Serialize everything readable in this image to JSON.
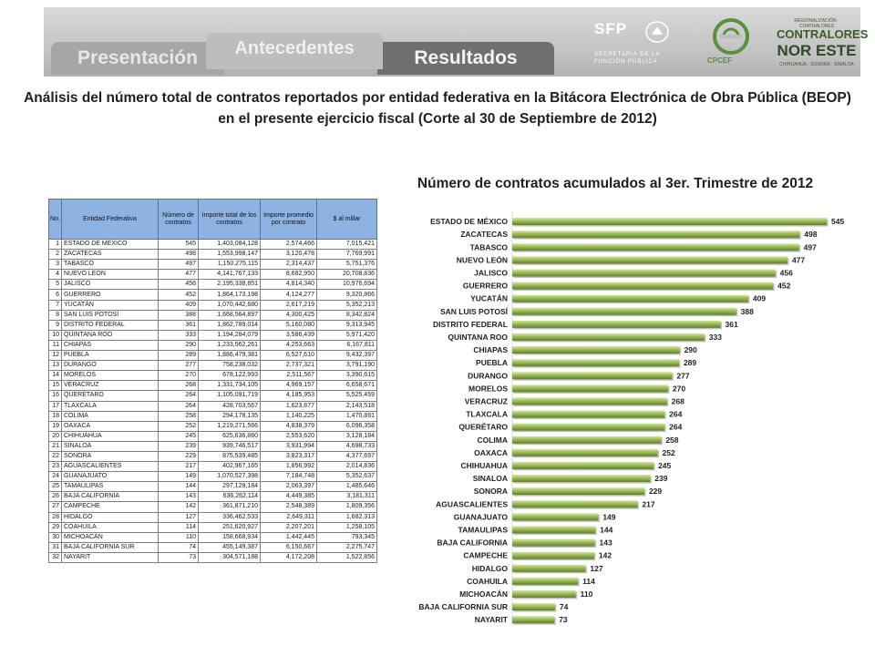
{
  "header": {
    "tabs": [
      {
        "label": "Presentación"
      },
      {
        "label": "Antecedentes"
      },
      {
        "label": "Resultados"
      }
    ],
    "logos": {
      "sfp": {
        "name": "SFP",
        "subtitle_line1": "SECRETARÍA DE LA",
        "subtitle_line2": "FUNCIÓN PÚBLICA"
      },
      "cpcef": {
        "name": "CPCEF"
      },
      "contralores": {
        "small": "REGIONALIZACIÓN · CONTRALORES",
        "line1": "CONTRALORES",
        "line2": "NOR ESTE",
        "footer": "CHIHUAHUA · SONORA · SINALOA"
      }
    }
  },
  "main_title": "Análisis del número total de contratos reportados por entidad federativa en la Bitácora Electrónica de Obra Pública (BEOP) en el presente ejercicio fiscal (Corte al 30 de Septiembre de 2012)",
  "chart_title": "Número de contratos acumulados al 3er. Trimestre de 2012",
  "table": {
    "headers": [
      "No.",
      "Entidad Federativa",
      "Número de contratos",
      "Importe total de los contratos",
      "Importe promedio por contrato",
      "$ al millar"
    ],
    "rows": [
      [
        "1",
        "ESTADO DE MÉXICO",
        "545",
        "1,403,084,128",
        "2,574,466",
        "7,015,421"
      ],
      [
        "2",
        "ZACATECAS",
        "498",
        "1,553,998,147",
        "3,120,478",
        "7,769,991"
      ],
      [
        "3",
        "TABASCO",
        "497",
        "1,150,275,115",
        "2,314,437",
        "5,751,376"
      ],
      [
        "4",
        "NUEVO LEÓN",
        "477",
        "4,141,767,133",
        "8,682,950",
        "20,708,836"
      ],
      [
        "5",
        "JALISCO",
        "456",
        "2,195,338,851",
        "4,814,340",
        "10,976,694"
      ],
      [
        "6",
        "GUERRERO",
        "452",
        "1,864,173,198",
        "4,124,277",
        "9,320,866"
      ],
      [
        "7",
        "YUCATÁN",
        "409",
        "1,070,442,680",
        "2,617,219",
        "5,352,213"
      ],
      [
        "8",
        "SAN LUIS POTOSÍ",
        "388",
        "1,668,564,897",
        "4,300,425",
        "8,342,824"
      ],
      [
        "9",
        "DISTRITO FEDERAL",
        "361",
        "1,862,789,014",
        "5,160,080",
        "9,313,945"
      ],
      [
        "10",
        "QUINTANA ROO",
        "333",
        "1,194,284,079",
        "3,586,439",
        "5,971,420"
      ],
      [
        "11",
        "CHIAPAS",
        "290",
        "1,233,562,261",
        "4,253,663",
        "6,167,811"
      ],
      [
        "12",
        "PUEBLA",
        "289",
        "1,886,479,381",
        "6,527,610",
        "9,432,397"
      ],
      [
        "13",
        "DURANGO",
        "277",
        "758,238,032",
        "2,737,321",
        "3,791,190"
      ],
      [
        "14",
        "MORELOS",
        "270",
        "678,122,993",
        "2,511,567",
        "3,390,615"
      ],
      [
        "15",
        "VERACRUZ",
        "268",
        "1,331,734,105",
        "4,969,157",
        "6,658,671"
      ],
      [
        "16",
        "QUERÉTARO",
        "264",
        "1,105,091,719",
        "4,185,953",
        "5,525,459"
      ],
      [
        "17",
        "TLAXCALA",
        "264",
        "428,703,567",
        "1,623,877",
        "2,143,518"
      ],
      [
        "18",
        "COLIMA",
        "258",
        "294,178,135",
        "1,140,225",
        "1,470,891"
      ],
      [
        "19",
        "OAXACA",
        "252",
        "1,219,271,566",
        "4,838,379",
        "6,096,358"
      ],
      [
        "20",
        "CHIHUAHUA",
        "245",
        "625,636,860",
        "2,553,620",
        "3,128,184"
      ],
      [
        "21",
        "SINALOA",
        "239",
        "939,746,517",
        "3,931,994",
        "4,698,733"
      ],
      [
        "22",
        "SONORA",
        "229",
        "875,539,485",
        "3,823,317",
        "4,377,697"
      ],
      [
        "23",
        "AGUASCALIENTES",
        "217",
        "402,967,165",
        "1,856,992",
        "2,014,836"
      ],
      [
        "24",
        "GUANAJUATO",
        "149",
        "1,070,527,398",
        "7,184,748",
        "5,352,637"
      ],
      [
        "25",
        "TAMAULIPAS",
        "144",
        "297,129,184",
        "2,063,397",
        "1,485,646"
      ],
      [
        "26",
        "BAJA CALIFORNIA",
        "143",
        "636,262,114",
        "4,449,385",
        "3,181,311"
      ],
      [
        "27",
        "CAMPECHE",
        "142",
        "361,871,210",
        "2,548,389",
        "1,809,356"
      ],
      [
        "28",
        "HIDALGO",
        "127",
        "336,462,533",
        "2,649,311",
        "1,682,313"
      ],
      [
        "29",
        "COAHUILA",
        "114",
        "251,620,927",
        "2,207,201",
        "1,258,105"
      ],
      [
        "30",
        "MICHOACÁN",
        "110",
        "158,668,934",
        "1,442,445",
        "793,345"
      ],
      [
        "31",
        "BAJA CALIFORNIA SUR",
        "74",
        "455,149,387",
        "6,150,667",
        "2,275,747"
      ],
      [
        "32",
        "NAYARIT",
        "73",
        "304,571,188",
        "4,172,208",
        "1,522,856"
      ]
    ]
  },
  "chart_data": {
    "type": "bar",
    "orientation": "horizontal",
    "title": "Número de contratos acumulados al 3er. Trimestre de 2012",
    "categories": [
      "ESTADO DE MÉXICO",
      "ZACATECAS",
      "TABASCO",
      "NUEVO LEÓN",
      "JALISCO",
      "GUERRERO",
      "YUCATÁN",
      "SAN LUIS POTOSÍ",
      "DISTRITO FEDERAL",
      "QUINTANA ROO",
      "CHIAPAS",
      "PUEBLA",
      "DURANGO",
      "MORELOS",
      "VERACRUZ",
      "TLAXCALA",
      "QUERÉTARO",
      "COLIMA",
      "OAXACA",
      "CHIHUAHUA",
      "SINALOA",
      "SONORA",
      "AGUASCALIENTES",
      "GUANAJUATO",
      "TAMAULIPAS",
      "BAJA CALIFORNIA",
      "CAMPECHE",
      "HIDALGO",
      "COAHUILA",
      "MICHOACÁN",
      "BAJA CALIFORNIA SUR",
      "NAYARIT"
    ],
    "values": [
      545,
      498,
      497,
      477,
      456,
      452,
      409,
      388,
      361,
      333,
      290,
      289,
      277,
      270,
      268,
      264,
      264,
      258,
      252,
      245,
      239,
      229,
      217,
      149,
      144,
      143,
      142,
      127,
      114,
      110,
      74,
      73
    ],
    "xlim": [
      0,
      545
    ],
    "grid": false,
    "legend": "none",
    "colors": {
      "bar": "#9bbb59",
      "bar_light": "#c9dd8f",
      "bar_dark": "#6f8f32",
      "header_fill": "#8db3e2"
    }
  }
}
